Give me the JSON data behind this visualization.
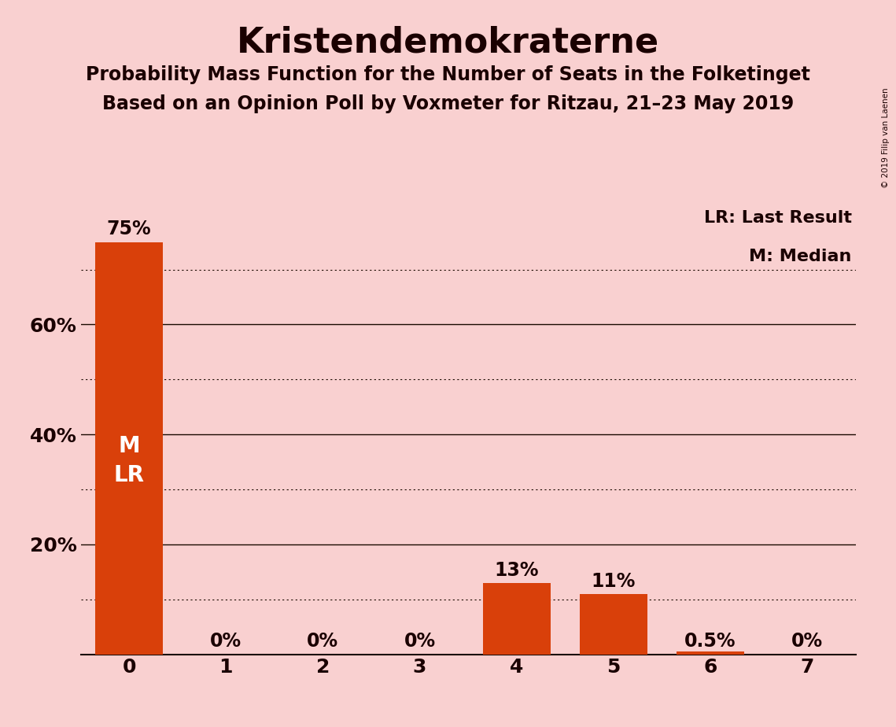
{
  "title": "Kristendemokraterne",
  "subtitle1": "Probability Mass Function for the Number of Seats in the Folketinget",
  "subtitle2": "Based on an Opinion Poll by Voxmeter for Ritzau, 21–23 May 2019",
  "copyright": "© 2019 Filip van Laenen",
  "categories": [
    0,
    1,
    2,
    3,
    4,
    5,
    6,
    7
  ],
  "values": [
    0.75,
    0.0,
    0.0,
    0.0,
    0.13,
    0.11,
    0.005,
    0.0
  ],
  "bar_labels": [
    "75%",
    "0%",
    "0%",
    "0%",
    "13%",
    "11%",
    "0.5%",
    "0%"
  ],
  "bar_label_above_bar": [
    true,
    false,
    false,
    false,
    true,
    true,
    false,
    false
  ],
  "bar_color": "#d9400a",
  "background_color": "#f9d0d0",
  "bar_inside_label": "M\nLR",
  "bar_inside_label_bar_index": 0,
  "legend_text": [
    "LR: Last Result",
    "M: Median"
  ],
  "ylim": [
    0,
    0.82
  ],
  "solid_yticks": [
    0.2,
    0.4,
    0.6
  ],
  "dotted_yticks": [
    0.1,
    0.3,
    0.5,
    0.7
  ],
  "ytick_positions": [
    0.2,
    0.4,
    0.6
  ],
  "ytick_labels": [
    "20%",
    "40%",
    "60%"
  ],
  "title_fontsize": 32,
  "subtitle_fontsize": 17,
  "axis_label_fontsize": 18,
  "bar_label_fontsize": 17,
  "inside_label_fontsize": 20,
  "legend_fontsize": 16,
  "copyright_fontsize": 7.5
}
